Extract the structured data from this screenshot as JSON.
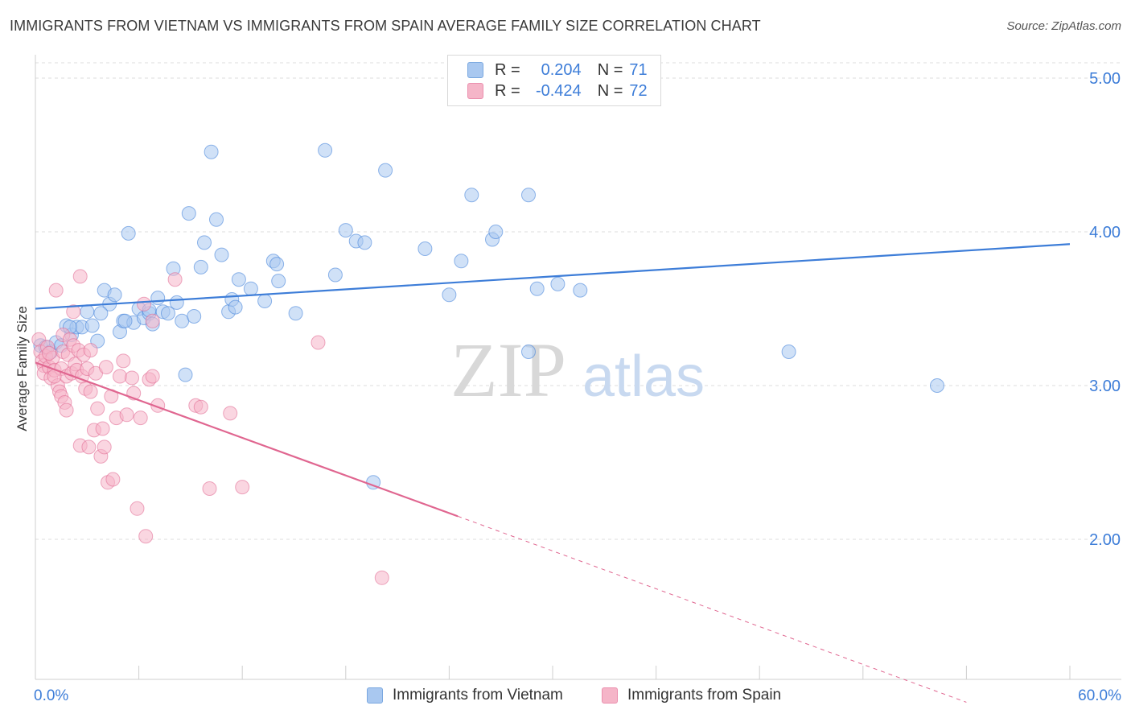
{
  "title": "IMMIGRANTS FROM VIETNAM VS IMMIGRANTS FROM SPAIN AVERAGE FAMILY SIZE CORRELATION CHART",
  "source": "Source: ZipAtlas.com",
  "legend": {
    "r_label": "R =",
    "n_label": "N =",
    "rows": [
      {
        "r": "0.204",
        "n": "71",
        "color": "#a9c8f0"
      },
      {
        "r": "-0.424",
        "n": "72",
        "color": "#f5b5c8"
      }
    ]
  },
  "bottom_legend": [
    {
      "label": "Immigrants from Vietnam",
      "color": "#a9c8f0"
    },
    {
      "label": "Immigrants from Spain",
      "color": "#f5b5c8"
    }
  ],
  "chart_data": {
    "type": "scatter",
    "title": "IMMIGRANTS FROM VIETNAM VS IMMIGRANTS FROM SPAIN AVERAGE FAMILY SIZE CORRELATION CHART",
    "xlabel": "",
    "ylabel": "Average Family Size",
    "xlim": [
      0,
      60
    ],
    "ylim": [
      1,
      5.1
    ],
    "x_tick_labels": [
      "0.0%",
      "60.0%"
    ],
    "y_ticks": [
      2,
      3,
      4,
      5
    ],
    "y_tick_labels": [
      "2.00",
      "3.00",
      "4.00",
      "5.00"
    ],
    "grid": true,
    "watermark": {
      "zip": "ZIP",
      "atlas": "atlas"
    },
    "series": [
      {
        "name": "Immigrants from Vietnam",
        "color": "#3d7dd8",
        "fill": "#a9c8f0",
        "trend": {
          "x0": 0,
          "y0": 3.5,
          "x1": 60,
          "y1": 3.92
        },
        "points": [
          [
            0.3,
            3.26
          ],
          [
            0.6,
            3.25
          ],
          [
            0.9,
            3.22
          ],
          [
            1.2,
            3.28
          ],
          [
            1.5,
            3.26
          ],
          [
            1.8,
            3.39
          ],
          [
            2.1,
            3.33
          ],
          [
            2.4,
            3.38
          ],
          [
            2.7,
            3.38
          ],
          [
            3.0,
            3.48
          ],
          [
            3.3,
            3.39
          ],
          [
            3.6,
            3.29
          ],
          [
            4.0,
            3.62
          ],
          [
            4.3,
            3.53
          ],
          [
            4.6,
            3.59
          ],
          [
            4.9,
            3.35
          ],
          [
            5.1,
            3.42
          ],
          [
            5.4,
            3.99
          ],
          [
            5.7,
            3.41
          ],
          [
            6.0,
            3.5
          ],
          [
            6.3,
            3.44
          ],
          [
            6.6,
            3.47
          ],
          [
            6.8,
            3.4
          ],
          [
            7.1,
            3.57
          ],
          [
            7.4,
            3.48
          ],
          [
            7.7,
            3.47
          ],
          [
            8.0,
            3.76
          ],
          [
            8.2,
            3.54
          ],
          [
            8.5,
            3.42
          ],
          [
            8.7,
            3.07
          ],
          [
            8.9,
            4.12
          ],
          [
            9.2,
            3.45
          ],
          [
            9.6,
            3.77
          ],
          [
            9.8,
            3.93
          ],
          [
            10.2,
            4.52
          ],
          [
            10.5,
            4.08
          ],
          [
            10.8,
            3.85
          ],
          [
            11.2,
            3.48
          ],
          [
            11.4,
            3.56
          ],
          [
            11.6,
            3.51
          ],
          [
            11.8,
            3.69
          ],
          [
            12.5,
            3.63
          ],
          [
            13.3,
            3.55
          ],
          [
            13.8,
            3.81
          ],
          [
            14.0,
            3.79
          ],
          [
            14.1,
            3.68
          ],
          [
            15.1,
            3.47
          ],
          [
            16.8,
            4.53
          ],
          [
            17.4,
            3.72
          ],
          [
            18.0,
            4.01
          ],
          [
            18.6,
            3.94
          ],
          [
            19.1,
            3.93
          ],
          [
            20.3,
            4.4
          ],
          [
            22.6,
            3.89
          ],
          [
            24.0,
            3.59
          ],
          [
            24.7,
            3.81
          ],
          [
            25.3,
            4.24
          ],
          [
            26.5,
            3.95
          ],
          [
            26.7,
            4.0
          ],
          [
            28.6,
            4.24
          ],
          [
            28.6,
            3.22
          ],
          [
            29.1,
            3.63
          ],
          [
            30.3,
            3.66
          ],
          [
            31.6,
            3.62
          ],
          [
            19.6,
            2.37
          ],
          [
            43.7,
            3.22
          ],
          [
            52.3,
            3.0
          ],
          [
            2.0,
            3.38
          ],
          [
            5.2,
            3.42
          ],
          [
            6.6,
            3.49
          ],
          [
            3.8,
            3.47
          ]
        ]
      },
      {
        "name": "Immigrants from Spain",
        "color": "#e06690",
        "fill": "#f5b5c8",
        "trend": {
          "x0": 0,
          "y0": 3.15,
          "x1": 24.5,
          "y1": 2.15
        },
        "trend_extension": {
          "x0": 24.5,
          "y0": 2.15,
          "x1": 54,
          "y1": 0.94
        },
        "points": [
          [
            0.2,
            3.3
          ],
          [
            0.3,
            3.22
          ],
          [
            0.4,
            3.16
          ],
          [
            0.5,
            3.13
          ],
          [
            0.5,
            3.08
          ],
          [
            0.6,
            3.19
          ],
          [
            0.7,
            3.25
          ],
          [
            0.8,
            3.12
          ],
          [
            0.9,
            3.05
          ],
          [
            1.0,
            3.18
          ],
          [
            1.1,
            3.1
          ],
          [
            1.2,
            3.62
          ],
          [
            1.3,
            3.0
          ],
          [
            1.4,
            2.96
          ],
          [
            1.5,
            2.93
          ],
          [
            1.5,
            3.11
          ],
          [
            1.6,
            3.22
          ],
          [
            1.6,
            3.33
          ],
          [
            1.7,
            2.89
          ],
          [
            1.8,
            3.06
          ],
          [
            1.8,
            2.84
          ],
          [
            1.9,
            3.2
          ],
          [
            2.0,
            3.3
          ],
          [
            2.1,
            3.08
          ],
          [
            2.2,
            3.26
          ],
          [
            2.2,
            3.48
          ],
          [
            2.3,
            3.14
          ],
          [
            2.4,
            3.1
          ],
          [
            2.5,
            3.23
          ],
          [
            2.6,
            3.71
          ],
          [
            2.6,
            2.61
          ],
          [
            2.7,
            3.06
          ],
          [
            2.8,
            3.2
          ],
          [
            2.9,
            2.98
          ],
          [
            3.0,
            3.11
          ],
          [
            3.1,
            2.6
          ],
          [
            3.2,
            2.96
          ],
          [
            3.4,
            2.71
          ],
          [
            3.5,
            3.08
          ],
          [
            3.6,
            2.85
          ],
          [
            3.8,
            2.54
          ],
          [
            3.9,
            2.72
          ],
          [
            4.0,
            2.6
          ],
          [
            4.1,
            3.12
          ],
          [
            4.2,
            2.37
          ],
          [
            4.4,
            2.93
          ],
          [
            4.5,
            2.39
          ],
          [
            4.7,
            2.79
          ],
          [
            4.9,
            3.06
          ],
          [
            5.1,
            3.16
          ],
          [
            5.3,
            2.81
          ],
          [
            5.6,
            3.05
          ],
          [
            5.7,
            2.95
          ],
          [
            5.9,
            2.2
          ],
          [
            6.1,
            2.79
          ],
          [
            6.3,
            3.53
          ],
          [
            6.4,
            2.02
          ],
          [
            6.6,
            3.04
          ],
          [
            6.8,
            3.06
          ],
          [
            6.8,
            3.42
          ],
          [
            7.1,
            2.87
          ],
          [
            8.1,
            3.69
          ],
          [
            9.3,
            2.87
          ],
          [
            9.6,
            2.86
          ],
          [
            10.1,
            2.33
          ],
          [
            11.3,
            2.82
          ],
          [
            12.0,
            2.34
          ],
          [
            16.4,
            3.28
          ],
          [
            20.1,
            1.75
          ],
          [
            1.1,
            3.06
          ],
          [
            0.8,
            3.21
          ],
          [
            3.2,
            3.23
          ]
        ]
      }
    ]
  }
}
